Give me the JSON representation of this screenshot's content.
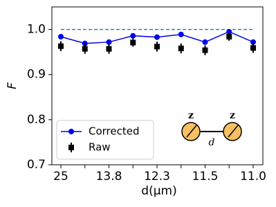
{
  "chart_data": {
    "type": "line",
    "xlabel": "d(μm)",
    "ylabel": "F",
    "categories": [
      "25",
      null,
      "13.8",
      null,
      "12.3",
      null,
      "11.5",
      null,
      "11.0"
    ],
    "series": [
      {
        "name": "Corrected",
        "color": "#0000ee",
        "marker": "circle",
        "values": [
          0.984,
          0.969,
          0.972,
          0.986,
          0.983,
          0.989,
          0.972,
          0.995,
          0.972
        ]
      },
      {
        "name": "Raw",
        "color": "#000000",
        "marker": "square",
        "line": false,
        "values": [
          0.963,
          0.957,
          0.957,
          0.971,
          0.962,
          0.958,
          0.954,
          0.984,
          0.959
        ],
        "errors": [
          0.011,
          0.011,
          0.011,
          0.009,
          0.011,
          0.011,
          0.011,
          0.009,
          0.011
        ]
      }
    ],
    "reference_value": 1,
    "reference_color": "#1f77b4",
    "ylim": [
      0.7,
      1.05
    ],
    "yticks": [
      {
        "value": 1,
        "label": "1.0"
      },
      0.9,
      0.8,
      0.7
    ],
    "legend": "lower left",
    "inset_labels": [
      "z",
      "z",
      "d"
    ]
  }
}
